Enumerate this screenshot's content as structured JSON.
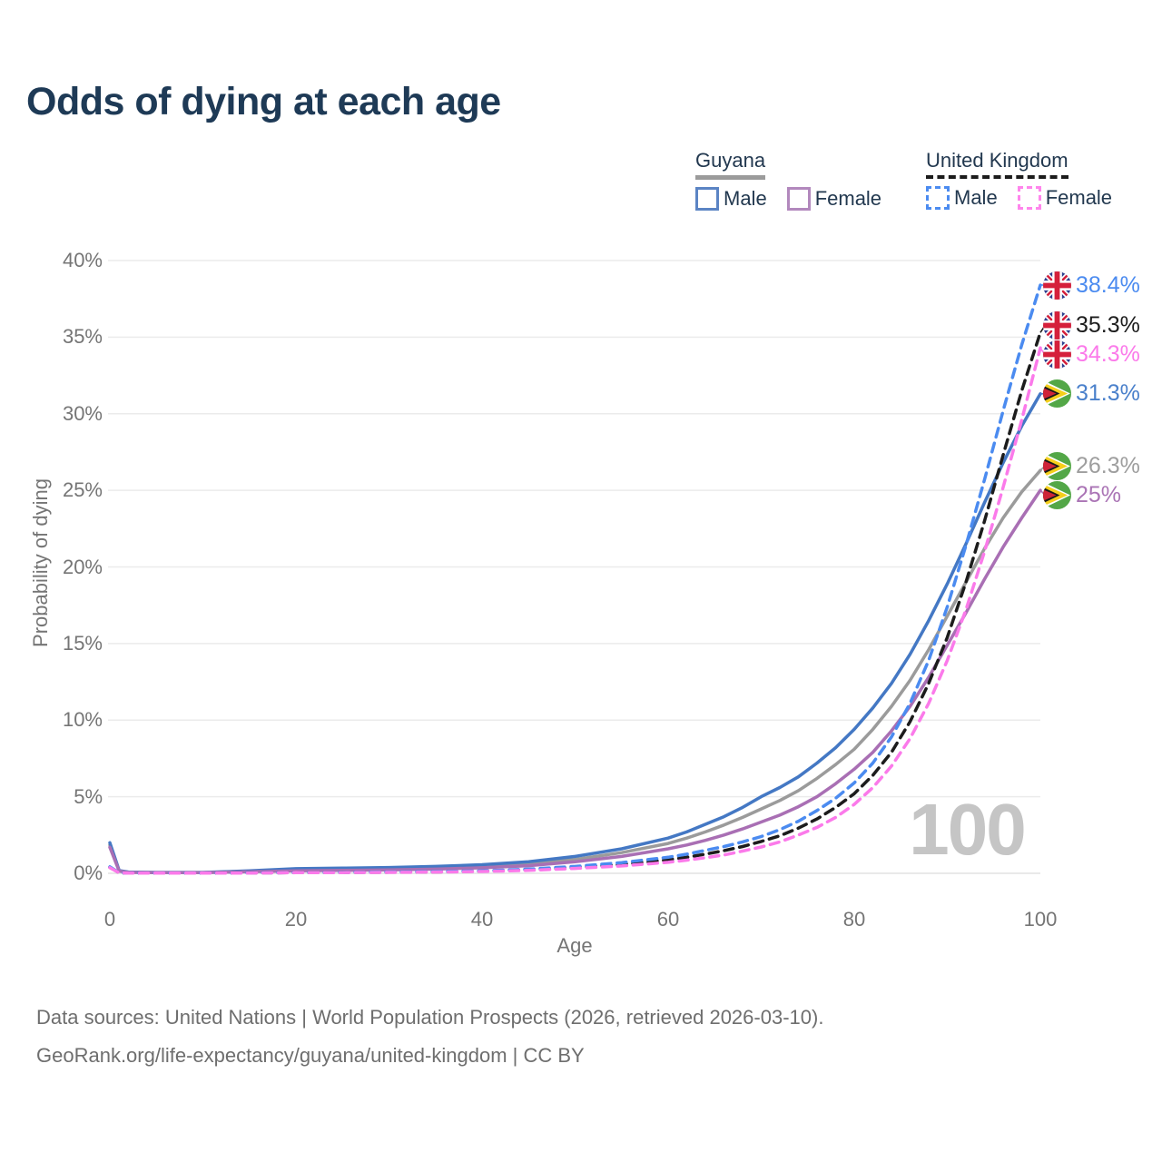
{
  "title": "Odds of dying at each age",
  "legend": {
    "groups": [
      {
        "label": "Guyana",
        "items": [
          {
            "label": "Male"
          },
          {
            "label": "Female"
          }
        ]
      },
      {
        "label": "United Kingdom",
        "items": [
          {
            "label": "Male"
          },
          {
            "label": "Female"
          }
        ]
      }
    ]
  },
  "y_axis": {
    "label": "Probability of dying",
    "ticks": [
      "40%",
      "35%",
      "30%",
      "25%",
      "20%",
      "15%",
      "10%",
      "5%",
      "0%"
    ]
  },
  "x_axis": {
    "label": "Age",
    "ticks": [
      "0",
      "20",
      "40",
      "60",
      "80",
      "100"
    ]
  },
  "watermark": "100",
  "end_labels": [
    {
      "series": 4,
      "flag": "uk",
      "value": "38.4%",
      "color": "#4b8bf0"
    },
    {
      "series": 3,
      "flag": "uk",
      "value": "35.3%",
      "color": "#1c1c1c"
    },
    {
      "series": 5,
      "flag": "uk",
      "value": "34.3%",
      "color": "#fb7aea"
    },
    {
      "series": 1,
      "flag": "gy",
      "value": "31.3%",
      "color": "#4a80cb"
    },
    {
      "series": 0,
      "flag": "gy",
      "value": "26.3%",
      "color": "#9e9e9e"
    },
    {
      "series": 2,
      "flag": "gy",
      "value": "25%",
      "color": "#aa74b5"
    }
  ],
  "sources": {
    "line1": "Data sources: United Nations | World Population Prospects (2026, retrieved 2026-03-10).",
    "line2": "GeoRank.org/life-expectancy/guyana/united-kingdom | CC BY"
  },
  "chart_data": {
    "type": "line",
    "title": "Odds of dying at each age",
    "xlabel": "Age",
    "ylabel": "Probability of dying",
    "xlim": [
      0,
      100
    ],
    "ylim_pct": [
      0,
      40
    ],
    "y_tick_step_pct": 5,
    "grid": "horizontal",
    "legend_position": "top-right",
    "x": [
      0,
      1,
      2,
      5,
      10,
      15,
      20,
      25,
      30,
      35,
      40,
      45,
      50,
      55,
      60,
      62,
      64,
      66,
      68,
      70,
      72,
      74,
      76,
      78,
      80,
      82,
      84,
      86,
      88,
      90,
      92,
      94,
      96,
      98,
      100
    ],
    "series": [
      {
        "name": "Guyana Total",
        "country": "Guyana",
        "sex": "both",
        "style": "solid",
        "color": "#9b9b9b",
        "end_value_pct": 26.3,
        "values": [
          1.85,
          0.16,
          0.07,
          0.05,
          0.05,
          0.13,
          0.23,
          0.26,
          0.3,
          0.36,
          0.46,
          0.62,
          0.9,
          1.35,
          1.95,
          2.3,
          2.7,
          3.15,
          3.65,
          4.2,
          4.75,
          5.4,
          6.2,
          7.1,
          8.1,
          9.4,
          10.9,
          12.6,
          14.6,
          16.8,
          19.0,
          21.2,
          23.2,
          24.9,
          26.3
        ]
      },
      {
        "name": "Guyana Male",
        "country": "Guyana",
        "sex": "male",
        "style": "solid",
        "color": "#4478c4",
        "end_value_pct": 31.3,
        "values": [
          2.0,
          0.18,
          0.08,
          0.06,
          0.06,
          0.16,
          0.3,
          0.34,
          0.38,
          0.45,
          0.56,
          0.75,
          1.1,
          1.6,
          2.3,
          2.7,
          3.2,
          3.7,
          4.3,
          5.0,
          5.6,
          6.3,
          7.2,
          8.2,
          9.4,
          10.8,
          12.4,
          14.3,
          16.5,
          18.9,
          21.5,
          24.2,
          26.8,
          29.2,
          31.3
        ]
      },
      {
        "name": "Guyana Female",
        "country": "Guyana",
        "sex": "female",
        "style": "solid",
        "color": "#a96fb4",
        "end_value_pct": 25.0,
        "values": [
          1.7,
          0.14,
          0.06,
          0.05,
          0.05,
          0.1,
          0.16,
          0.19,
          0.22,
          0.27,
          0.36,
          0.5,
          0.75,
          1.1,
          1.6,
          1.85,
          2.15,
          2.5,
          2.9,
          3.35,
          3.8,
          4.35,
          5.0,
          5.85,
          6.8,
          7.9,
          9.3,
          10.9,
          12.8,
          14.9,
          17.0,
          19.2,
          21.3,
          23.2,
          25.0
        ]
      },
      {
        "name": "United Kingdom Total",
        "country": "United Kingdom",
        "sex": "both",
        "style": "dashed",
        "color": "#1c1c1c",
        "end_value_pct": 35.3,
        "values": [
          0.4,
          0.03,
          0.02,
          0.01,
          0.01,
          0.03,
          0.05,
          0.06,
          0.07,
          0.09,
          0.14,
          0.23,
          0.38,
          0.58,
          0.88,
          1.05,
          1.25,
          1.48,
          1.75,
          2.08,
          2.45,
          2.95,
          3.55,
          4.3,
          5.2,
          6.4,
          7.9,
          9.9,
          12.4,
          15.4,
          19.0,
          23.0,
          27.3,
          31.5,
          35.3
        ]
      },
      {
        "name": "United Kingdom Male",
        "country": "United Kingdom",
        "sex": "male",
        "style": "dashed",
        "color": "#4b8bf0",
        "end_value_pct": 38.4,
        "values": [
          0.42,
          0.03,
          0.02,
          0.01,
          0.01,
          0.03,
          0.05,
          0.06,
          0.08,
          0.11,
          0.16,
          0.27,
          0.45,
          0.7,
          1.05,
          1.25,
          1.5,
          1.75,
          2.05,
          2.4,
          2.85,
          3.4,
          4.1,
          4.9,
          5.9,
          7.2,
          8.9,
          11.1,
          13.9,
          17.4,
          21.4,
          25.7,
          30.2,
          34.5,
          38.4
        ]
      },
      {
        "name": "United Kingdom Female",
        "country": "United Kingdom",
        "sex": "female",
        "style": "dashed",
        "color": "#fb7aea",
        "end_value_pct": 34.3,
        "values": [
          0.37,
          0.03,
          0.02,
          0.01,
          0.01,
          0.02,
          0.04,
          0.05,
          0.06,
          0.08,
          0.12,
          0.19,
          0.32,
          0.48,
          0.72,
          0.86,
          1.02,
          1.2,
          1.45,
          1.72,
          2.05,
          2.5,
          3.0,
          3.65,
          4.5,
          5.6,
          7.0,
          8.8,
          11.1,
          13.9,
          17.2,
          21.0,
          25.2,
          29.6,
          34.3
        ]
      }
    ]
  }
}
